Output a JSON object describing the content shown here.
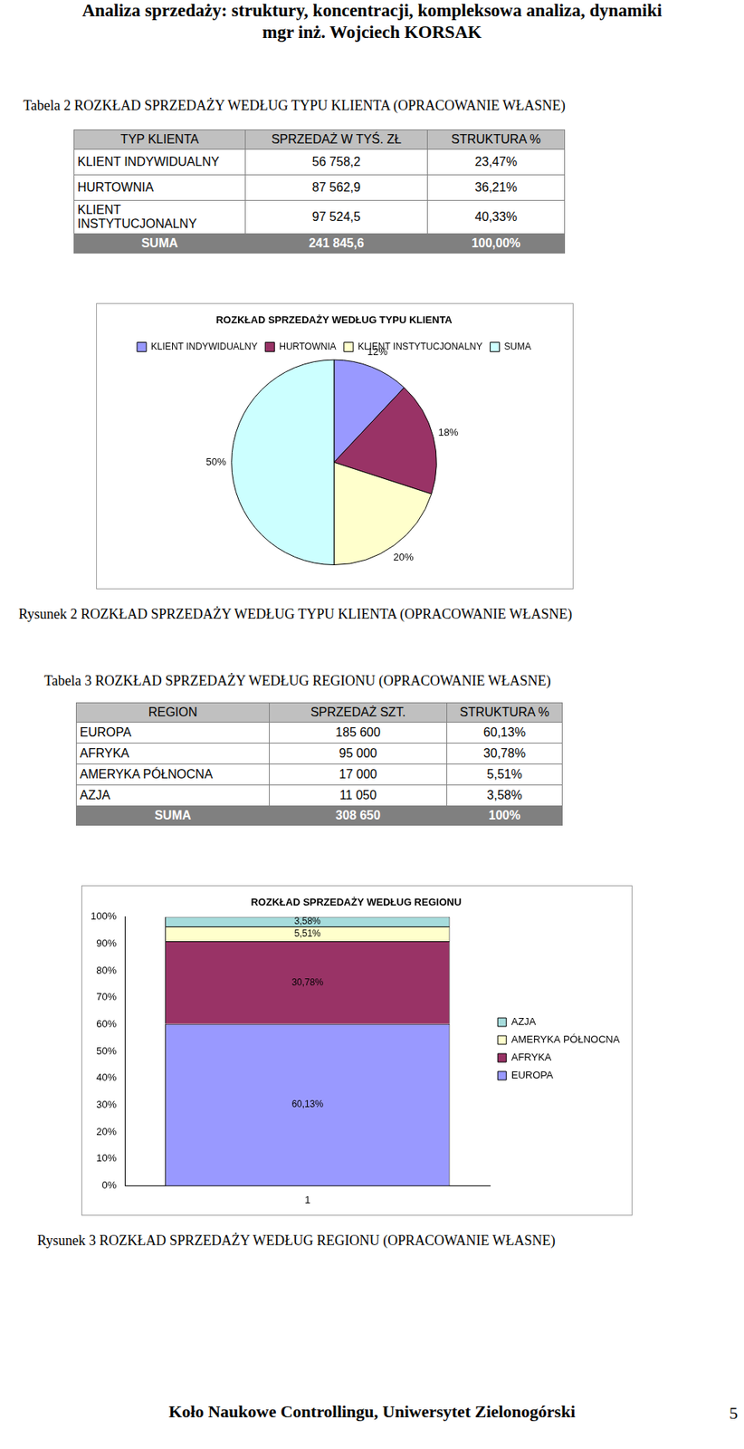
{
  "header": {
    "title": "Analiza sprzedaży: struktury, koncentracji, kompleksowa analiza, dynamiki",
    "author": "mgr inż. Wojciech KORSAK"
  },
  "table_2": {
    "caption": "Tabela 2 ROZKŁAD SPRZEDAŻY WEDŁUG TYPU KLIENTA (OPRACOWANIE WŁASNE)",
    "columns": [
      "TYP KLIENTA",
      "SPRZEDAŻ W TYŚ. ZŁ",
      "STRUKTURA %"
    ],
    "rows": [
      [
        "KLIENT INDYWIDUALNY",
        "56 758,2",
        "23,47%"
      ],
      [
        "HURTOWNIA",
        "87 562,9",
        "36,21%"
      ],
      [
        "KLIENT INSTYTUCJONALNY",
        "97 524,5",
        "40,33%"
      ]
    ],
    "total": [
      "SUMA",
      "241 845,6",
      "100,00%"
    ]
  },
  "chart_data": [
    {
      "type": "pie",
      "title": "ROZKŁAD SPRZEDAŻY WEDŁUG TYPU KLIENTA",
      "categories": [
        "KLIENT INDYWIDUALNY",
        "HURTOWNIA",
        "KLIENT INSTYTUCJONALNY",
        "SUMA"
      ],
      "values": [
        12,
        18,
        20,
        50
      ],
      "value_labels": [
        "12%",
        "18%",
        "20%",
        "50%"
      ],
      "colors": [
        "#9999ff",
        "#993366",
        "#ffffcc",
        "#ccffff"
      ],
      "legend": "top",
      "data_labels": true
    },
    {
      "type": "bar",
      "title": "ROZKŁAD SPRZEDAŻY WEDŁUG REGIONU",
      "categories": [
        "1"
      ],
      "series": [
        {
          "name": "EUROPA",
          "color": "#9999ff",
          "values": [
            60.13
          ],
          "value_labels": [
            "60,13%"
          ]
        },
        {
          "name": "AFRYKA",
          "color": "#993366",
          "values": [
            30.78
          ],
          "value_labels": [
            "30,78%"
          ]
        },
        {
          "name": "AMERYKA PÓŁNOCNA",
          "color": "#ffffcc",
          "values": [
            5.51
          ],
          "value_labels": [
            "5,51%"
          ]
        },
        {
          "name": "AZJA",
          "color": "#a6dcdc",
          "values": [
            3.58
          ],
          "value_labels": [
            "3,58%"
          ]
        }
      ],
      "stacked": true,
      "ylim": [
        0,
        100
      ],
      "yticks": [
        {
          "value": 0,
          "label": "0%"
        },
        {
          "value": 10,
          "label": "10%"
        },
        {
          "value": 20,
          "label": "20%"
        },
        {
          "value": 30,
          "label": "30%"
        },
        {
          "value": 40,
          "label": "40%"
        },
        {
          "value": 50,
          "label": "50%"
        },
        {
          "value": 60,
          "label": "60%"
        },
        {
          "value": 70,
          "label": "70%"
        },
        {
          "value": 80,
          "label": "80%"
        },
        {
          "value": 90,
          "label": "90%"
        },
        {
          "value": 100,
          "label": "100%"
        }
      ],
      "legend": "right",
      "grid": false,
      "data_labels": true
    }
  ],
  "figure_captions": [
    "Rysunek 2 ROZKŁAD SPRZEDAŻY WEDŁUG TYPU KLIENTA (OPRACOWANIE WŁASNE)",
    "Rysunek 3 ROZKŁAD SPRZEDAŻY WEDŁUG REGIONU (OPRACOWANIE WŁASNE)"
  ],
  "table_3": {
    "caption": "Tabela 3 ROZKŁAD SPRZEDAŻY WEDŁUG REGIONU (OPRACOWANIE WŁASNE)",
    "columns": [
      "REGION",
      "SPRZEDAŻ SZT.",
      "STRUKTURA %"
    ],
    "rows": [
      [
        "EUROPA",
        "185 600",
        "60,13%"
      ],
      [
        "AFRYKA",
        "95 000",
        "30,78%"
      ],
      [
        "AMERYKA PÓŁNOCNA",
        "17 000",
        "5,51%"
      ],
      [
        "AZJA",
        "11 050",
        "3,58%"
      ]
    ],
    "total": [
      "SUMA",
      "308 650",
      "100%"
    ]
  },
  "footer": "Koło Naukowe Controllingu, Uniwersytet Zielonogórski",
  "page_number": "5"
}
